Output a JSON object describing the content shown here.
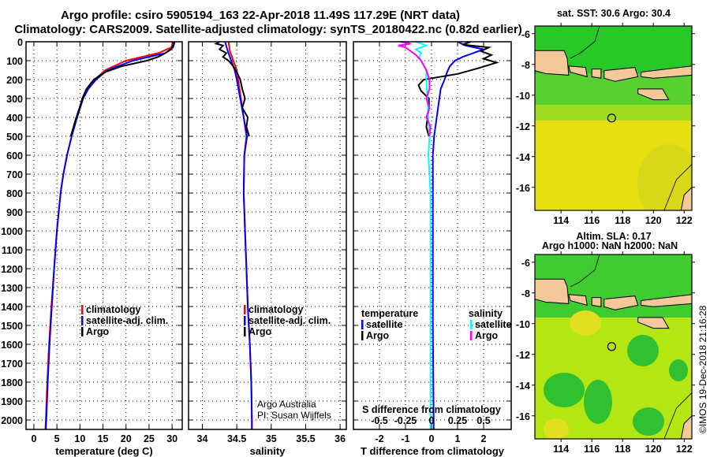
{
  "title_line1": "Argo profile: csiro 5905194_163 22-Apr-2018 11.49S 117.29E (NRT data)",
  "title_line2": "Climatology: CARS2009. Satellite-adjusted climatology: synTS_20180422.nc (0.82d earlier)",
  "credit_line1": "Argo Australia",
  "credit_line2": "PI: Susan Wijffels",
  "watermark": "©IMOS 19-Dec-2018 21:16:28",
  "colors": {
    "climatology": "#ff0000",
    "satellite": "#0000ff",
    "argo": "#000000",
    "sal_satellite": "#00ffff",
    "sal_argo": "#ff00ff",
    "land": "#f5c89a"
  },
  "chart_data": [
    {
      "type": "line",
      "id": "temperature",
      "xlabel": "temperature (deg C)",
      "ylabel": "",
      "xlim": [
        -1.7,
        32.2
      ],
      "ylim": [
        0,
        2050
      ],
      "xticks": [
        0,
        5,
        10,
        15,
        20,
        25,
        30
      ],
      "yticks": [
        0,
        100,
        200,
        300,
        400,
        500,
        600,
        700,
        800,
        900,
        1000,
        1100,
        1200,
        1300,
        1400,
        1500,
        1600,
        1700,
        1800,
        1900,
        2000
      ],
      "grid": true,
      "legend": {
        "position": "bottom-right",
        "entries": [
          "climatology",
          "satellite-adj. clim.",
          "Argo"
        ]
      },
      "series": [
        {
          "name": "climatology",
          "color": "#ff0000",
          "depth": [
            0,
            30,
            60,
            100,
            150,
            200,
            250,
            300,
            400,
            500,
            600,
            700,
            800,
            1000,
            1200,
            1400,
            1600,
            1800,
            2000,
            2050
          ],
          "values": [
            30.3,
            29.8,
            27,
            20,
            15.5,
            13.2,
            11.6,
            10.6,
            9.3,
            8.2,
            7.2,
            6.4,
            5.8,
            5.0,
            4.4,
            3.8,
            3.3,
            2.9,
            2.6,
            2.5
          ]
        },
        {
          "name": "satellite-adj. clim.",
          "color": "#0000ff",
          "depth": [
            0,
            30,
            60,
            100,
            150,
            200,
            250,
            300,
            400,
            500,
            600,
            700,
            800,
            1000,
            1200,
            1400,
            1600,
            1800,
            2000,
            2050
          ],
          "values": [
            30.6,
            30.2,
            28.5,
            21.5,
            16,
            13.5,
            11.8,
            10.7,
            9.4,
            8.2,
            7.2,
            6.4,
            5.8,
            5.0,
            4.4,
            3.9,
            3.4,
            3.0,
            2.7,
            2.6
          ]
        },
        {
          "name": "Argo",
          "color": "#000000",
          "depth": [
            0,
            20,
            40,
            60,
            80,
            100,
            130,
            160,
            200,
            250,
            300,
            350,
            400,
            450,
            500
          ],
          "values": [
            30.4,
            30.2,
            29.8,
            28.5,
            27,
            24.5,
            19,
            15.5,
            13,
            11.4,
            10.5,
            9.9,
            9.2,
            8.6,
            8.0
          ]
        }
      ]
    },
    {
      "type": "line",
      "id": "salinity",
      "xlabel": "salinity",
      "xlim": [
        33.8,
        36.09
      ],
      "ylim": [
        0,
        2050
      ],
      "xticks": [
        34,
        34.5,
        35,
        35.5,
        36
      ],
      "xticklabels": [
        "34",
        "34.5",
        "35",
        "35.5",
        "36"
      ],
      "grid": true,
      "legend": {
        "position": "bottom-right",
        "entries": [
          "climatology",
          "satellite-adj. clim.",
          "Argo"
        ]
      },
      "series": [
        {
          "name": "climatology",
          "color": "#ff0000",
          "depth": [
            0,
            50,
            100,
            150,
            200,
            300,
            400,
            500,
            600,
            800,
            1000,
            1200,
            1400,
            1600,
            1800,
            2000,
            2050
          ],
          "values": [
            34.38,
            34.4,
            34.45,
            34.5,
            34.52,
            34.56,
            34.6,
            34.64,
            34.61,
            34.6,
            34.62,
            34.64,
            34.66,
            34.69,
            34.71,
            34.72,
            34.72
          ]
        },
        {
          "name": "satellite-adj. clim.",
          "color": "#0000ff",
          "depth": [
            0,
            50,
            100,
            150,
            200,
            300,
            400,
            500,
            600,
            800,
            1000,
            1200,
            1400,
            1600,
            1800,
            2000,
            2050
          ],
          "values": [
            34.33,
            34.37,
            34.42,
            34.47,
            34.5,
            34.55,
            34.6,
            34.65,
            34.61,
            34.6,
            34.62,
            34.64,
            34.66,
            34.69,
            34.71,
            34.72,
            34.72
          ]
        },
        {
          "name": "Argo",
          "color": "#000000",
          "depth": [
            0,
            10,
            20,
            40,
            60,
            80,
            100,
            130,
            160,
            200,
            250,
            300,
            350,
            400,
            450,
            500
          ],
          "values": [
            34.25,
            34.2,
            34.3,
            34.25,
            34.35,
            34.3,
            34.38,
            34.45,
            34.5,
            34.55,
            34.58,
            34.62,
            34.58,
            34.66,
            34.64,
            34.68
          ]
        }
      ]
    },
    {
      "type": "line",
      "id": "difference",
      "xlabel": "T difference from climatology",
      "xlabel_top": "S difference from climatology",
      "xlim": [
        -3,
        3.06
      ],
      "ylim": [
        0,
        2050
      ],
      "xticks": [
        -2,
        -1,
        0,
        1,
        2
      ],
      "s_xticks": [
        -0.5,
        -0.25,
        0,
        0.25,
        0.5
      ],
      "s_xticklabels": [
        "-0.5",
        "-0.25",
        "0",
        "0.25",
        "0.5"
      ],
      "s_scale_factor": 4,
      "grid": true,
      "legend": {
        "temperature_title": "temperature",
        "salinity_title": "salinity",
        "entries": [
          "satellite",
          "Argo",
          "satellite",
          "Argo"
        ]
      },
      "series": [
        {
          "name": "temperature satellite",
          "color": "#0000ff",
          "depth": [
            0,
            20,
            40,
            60,
            80,
            100,
            130,
            160,
            200,
            250,
            300,
            400,
            500,
            600,
            800,
            1000,
            1500,
            2000,
            2050
          ],
          "values": [
            1.0,
            1.3,
            2.0,
            1.6,
            1.2,
            0.9,
            0.7,
            0.6,
            0.5,
            0.35,
            0.3,
            0.2,
            0.1,
            0.05,
            0.05,
            0.05,
            0.05,
            0.08,
            0.08
          ]
        },
        {
          "name": "temperature Argo",
          "color": "#000000",
          "depth": [
            0,
            15,
            30,
            50,
            70,
            90,
            110,
            140,
            170,
            200,
            230,
            260,
            300,
            350,
            400,
            450,
            500
          ],
          "values": [
            1.5,
            1.2,
            2.2,
            1.9,
            2.3,
            2.0,
            2.5,
            1.8,
            1.0,
            -0.3,
            -0.5,
            -0.4,
            -0.1,
            -0.1,
            -0.15,
            -0.2,
            -0.1
          ]
        },
        {
          "name": "salinity satellite",
          "color": "#00ffff",
          "depth": [
            0,
            20,
            40,
            60,
            80,
            100,
            150,
            200,
            300,
            400,
            500,
            600,
            800,
            1000,
            1500,
            2000,
            2050
          ],
          "values": [
            -0.15,
            -0.05,
            -0.15,
            -0.1,
            -0.12,
            -0.1,
            -0.05,
            -0.05,
            -0.04,
            -0.03,
            -0.02,
            -0.03,
            -0.01,
            -0.01,
            -0.01,
            -0.01,
            -0.01
          ]
        },
        {
          "name": "salinity Argo",
          "color": "#ff00ff",
          "depth": [
            0,
            10,
            20,
            30,
            50,
            70,
            100,
            150,
            200,
            250,
            300,
            350,
            400,
            450,
            500
          ],
          "values": [
            -0.3,
            -0.2,
            -0.32,
            -0.25,
            -0.2,
            -0.15,
            -0.1,
            -0.05,
            -0.02,
            -0.02,
            -0.05,
            -0.02,
            -0.05,
            -0.01,
            -0.02
          ]
        }
      ]
    },
    {
      "type": "heatmap",
      "id": "sst-map",
      "title": "sat. SST: 30.6 Argo: 30.4",
      "xlim": [
        112.3,
        122.5
      ],
      "ylim": [
        -17.5,
        -5.5
      ],
      "xticks": [
        114,
        116,
        118,
        120,
        122
      ],
      "yticks": [
        -6,
        -8,
        -10,
        -12,
        -14,
        -16
      ],
      "marker": {
        "lon": 117.29,
        "lat": -11.49
      }
    },
    {
      "type": "heatmap",
      "id": "sla-map",
      "title": "Altim. SLA: 0.17",
      "subtitle": "Argo h1000: NaN h2000: NaN",
      "xlim": [
        112.3,
        122.5
      ],
      "ylim": [
        -17.5,
        -5.5
      ],
      "xticks": [
        114,
        116,
        118,
        120,
        122
      ],
      "yticks": [
        -6,
        -8,
        -10,
        -12,
        -14,
        -16
      ],
      "marker": {
        "lon": 117.29,
        "lat": -11.49
      }
    }
  ]
}
